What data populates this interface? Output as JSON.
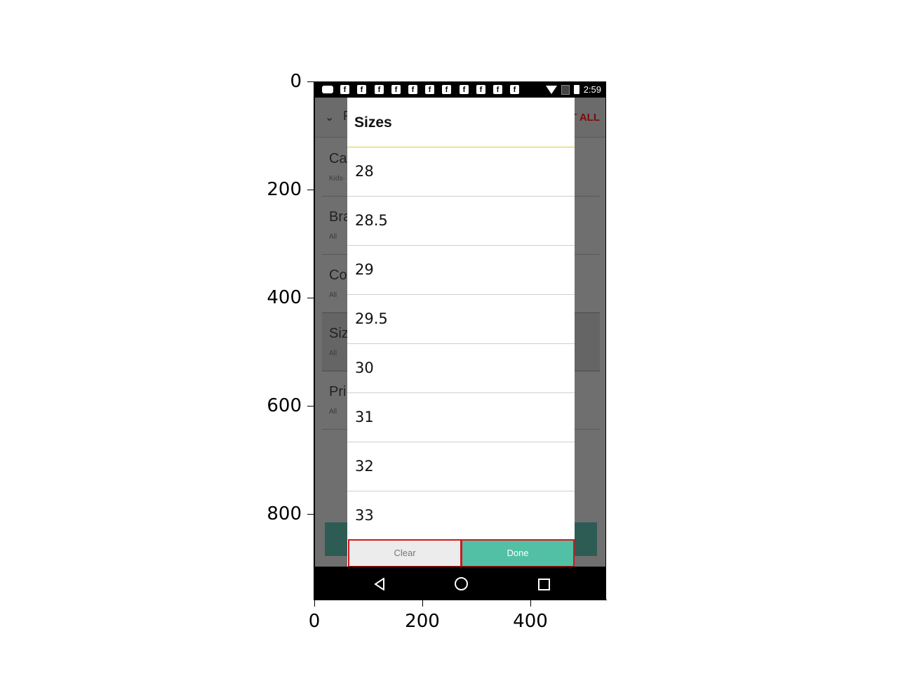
{
  "status_bar": {
    "time": "2:59"
  },
  "background": {
    "header_peek": "F",
    "reset_label": "T ALL",
    "rows": [
      {
        "title": "Ca",
        "sub": "Kids-"
      },
      {
        "title": "Bra",
        "sub": "All"
      },
      {
        "title": "Co",
        "sub": "All"
      },
      {
        "title": "Siz",
        "sub": "All"
      },
      {
        "title": "Pri",
        "sub": "All"
      }
    ]
  },
  "dialog": {
    "title": "Sizes",
    "items": [
      "28",
      "28.5",
      "29",
      "29.5",
      "30",
      "31",
      "32",
      "33"
    ],
    "clear_label": "Clear",
    "done_label": "Done"
  },
  "axes": {
    "y_ticks": [
      "0",
      "200",
      "400",
      "600",
      "800"
    ],
    "x_ticks": [
      "0",
      "200",
      "400"
    ]
  },
  "icons": {
    "status": [
      "message-icon",
      "facebook-icon",
      "wifi-icon",
      "no-sim-icon",
      "battery-icon"
    ],
    "nav": [
      "nav-back-icon",
      "nav-home-icon",
      "nav-recent-icon"
    ]
  },
  "colors": {
    "accent_done": "#52c0a5",
    "divider": "#e8c34a",
    "highlight_border": "#d8141c"
  }
}
